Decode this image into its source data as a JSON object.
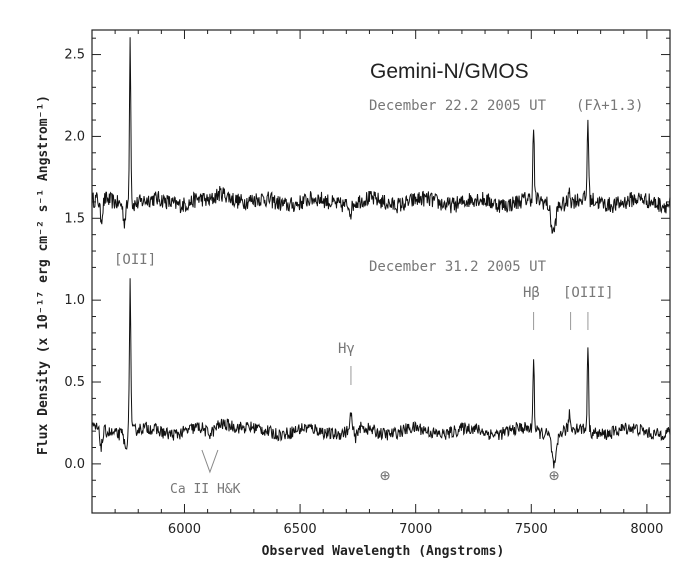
{
  "chart_data": {
    "type": "line",
    "title": "Gemini-N/GMOS",
    "xlabel": "Observed Wavelength (Angstroms)",
    "ylabel": "Flux Density (x 10⁻¹⁷ erg cm⁻² s⁻¹ Angstrom⁻¹)",
    "xlim": [
      5600,
      8100
    ],
    "ylim": [
      -0.3,
      2.65
    ],
    "xticks": [
      6000,
      6500,
      7000,
      7500,
      8000
    ],
    "yticks": [
      0.0,
      0.5,
      1.0,
      1.5,
      2.0,
      2.5
    ],
    "ytick_labels": [
      "0.0",
      "0.5",
      "1.0",
      "1.5",
      "2.0",
      "2.5"
    ],
    "grid": false,
    "series": [
      {
        "name": "December 22.2 2005 UT (Fλ+1.3)",
        "baseline": 1.6,
        "noise": 0.045,
        "features": [
          {
            "x": 5765,
            "height": 1.02,
            "width": 3,
            "kind": "emission"
          },
          {
            "x": 5640,
            "height": -0.12,
            "width": 6,
            "kind": "absorption"
          },
          {
            "x": 5740,
            "height": -0.1,
            "width": 5,
            "kind": "absorption"
          },
          {
            "x": 6110,
            "height": -0.06,
            "width": 25,
            "kind": "absorption"
          },
          {
            "x": 6150,
            "height": 0.06,
            "width": 60,
            "kind": "emission"
          },
          {
            "x": 6720,
            "height": -0.05,
            "width": 5,
            "kind": "absorption"
          },
          {
            "x": 7510,
            "height": 0.43,
            "width": 3,
            "kind": "emission"
          },
          {
            "x": 7595,
            "height": -0.17,
            "width": 10,
            "kind": "absorption"
          },
          {
            "x": 7665,
            "height": 0.1,
            "width": 3,
            "kind": "emission"
          },
          {
            "x": 7745,
            "height": 0.5,
            "width": 3,
            "kind": "emission"
          }
        ]
      },
      {
        "name": "December 31.2 2005 UT",
        "baseline": 0.2,
        "noise": 0.035,
        "features": [
          {
            "x": 5765,
            "height": 0.93,
            "width": 3,
            "kind": "emission"
          },
          {
            "x": 5640,
            "height": -0.1,
            "width": 6,
            "kind": "absorption"
          },
          {
            "x": 5745,
            "height": -0.1,
            "width": 5,
            "kind": "absorption"
          },
          {
            "x": 6110,
            "height": -0.05,
            "width": 20,
            "kind": "absorption"
          },
          {
            "x": 6170,
            "height": 0.06,
            "width": 50,
            "kind": "emission"
          },
          {
            "x": 6720,
            "height": 0.12,
            "width": 3,
            "kind": "emission"
          },
          {
            "x": 6740,
            "height": -0.07,
            "width": 5,
            "kind": "absorption"
          },
          {
            "x": 7510,
            "height": 0.45,
            "width": 3,
            "kind": "emission"
          },
          {
            "x": 7600,
            "height": -0.2,
            "width": 10,
            "kind": "absorption"
          },
          {
            "x": 7665,
            "height": 0.1,
            "width": 3,
            "kind": "emission"
          },
          {
            "x": 7745,
            "height": 0.52,
            "width": 3,
            "kind": "emission"
          }
        ]
      }
    ],
    "annotations": {
      "spectrum1_date": "December 22.2 2005 UT",
      "spectrum1_offset": "(Fλ+1.3)",
      "spectrum2_date": "December 31.2 2005 UT",
      "oii_label": "[OII]",
      "hbeta_label": "Hβ",
      "oiii_label": "[OIII]",
      "hgamma_label": "Hγ",
      "cahk_label": "Ca II H&K",
      "telluric_symbol": "⊕",
      "oii_x": 5765,
      "hgamma_x": 6720,
      "hbeta_x": 7510,
      "oiii_x": [
        7670,
        7745
      ],
      "cahk_x": 6110,
      "telluric_x": [
        6885,
        7600
      ]
    }
  }
}
